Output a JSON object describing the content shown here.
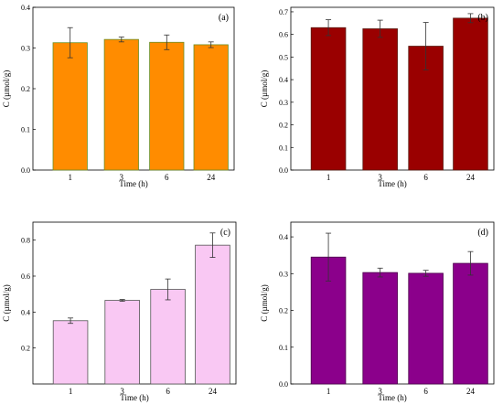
{
  "chart_data": [
    {
      "type": "bar",
      "panel_label": "(a)",
      "categories": [
        "1",
        "3",
        "6",
        "24"
      ],
      "values": [
        0.313,
        0.321,
        0.314,
        0.308
      ],
      "errors": [
        0.037,
        0.006,
        0.018,
        0.007
      ],
      "xlabel": "Time (h)",
      "ylabel": "C (µmol/g)",
      "ylim": [
        0,
        0.4
      ],
      "yticks": [
        "0.0",
        "0.1",
        "0.2",
        "0.3",
        "0.4"
      ],
      "bar_color": "#ff8c00",
      "edge_color": "#6b8e23"
    },
    {
      "type": "bar",
      "panel_label": "(b)",
      "categories": [
        "1",
        "3",
        "6",
        "24"
      ],
      "values": [
        0.63,
        0.625,
        0.548,
        0.672
      ],
      "errors": [
        0.035,
        0.038,
        0.105,
        0.02
      ],
      "xlabel": "Time (h)",
      "ylabel": "C (µmol/g)",
      "ylim": [
        0,
        0.72
      ],
      "yticks": [
        "0.0",
        "0.1",
        "0.2",
        "0.3",
        "0.4",
        "0.5",
        "0.6",
        "0.7"
      ],
      "bar_color": "#9a0000",
      "edge_color": "#5a1a10"
    },
    {
      "type": "bar",
      "panel_label": "(c)",
      "categories": [
        "1",
        "3",
        "6",
        "24"
      ],
      "values": [
        0.352,
        0.465,
        0.526,
        0.772
      ],
      "errors": [
        0.015,
        0.005,
        0.058,
        0.068
      ],
      "xlabel": "Time (h)",
      "ylabel": "C (µmol/g)",
      "ylim": [
        0,
        0.9
      ],
      "yticks": [
        "0.2",
        "0.4",
        "0.6",
        "0.8"
      ],
      "bar_color": "#f9c8f3",
      "edge_color": "#555555"
    },
    {
      "type": "bar",
      "panel_label": "(d)",
      "categories": [
        "1",
        "3",
        "6",
        "24"
      ],
      "values": [
        0.345,
        0.303,
        0.301,
        0.328
      ],
      "errors": [
        0.065,
        0.012,
        0.008,
        0.032
      ],
      "xlabel": "Time (h)",
      "ylabel": "C (µmol/g)",
      "ylim": [
        0,
        0.44
      ],
      "yticks": [
        "0.0",
        "0.1",
        "0.2",
        "0.3",
        "0.4"
      ],
      "bar_color": "#8b008b",
      "edge_color": "#4b004b"
    }
  ]
}
